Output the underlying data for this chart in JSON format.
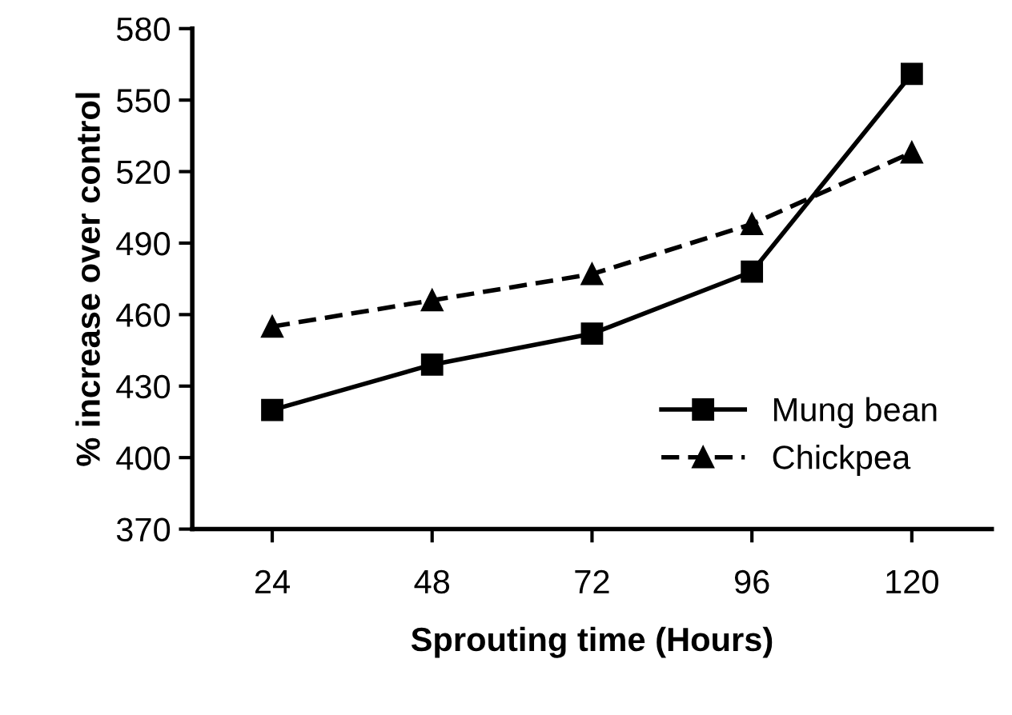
{
  "chart_data": {
    "type": "line",
    "xlabel": "Sprouting time (Hours)",
    "ylabel": "% increase over control",
    "categories": [
      "24",
      "48",
      "72",
      "96",
      "120"
    ],
    "series": [
      {
        "name": "Mung bean",
        "color": "#000000",
        "values": [
          420,
          439,
          452,
          478,
          561
        ],
        "marker": "square",
        "line_style": "solid"
      },
      {
        "name": "Chickpea",
        "color": "#000000",
        "values": [
          455,
          466,
          477,
          498,
          528
        ],
        "marker": "triangle",
        "line_style": "dashed"
      }
    ],
    "ylim": [
      370,
      580
    ],
    "yticks": [
      370,
      400,
      430,
      460,
      490,
      520,
      550,
      580
    ],
    "grid": false,
    "legend": "bottom right"
  }
}
